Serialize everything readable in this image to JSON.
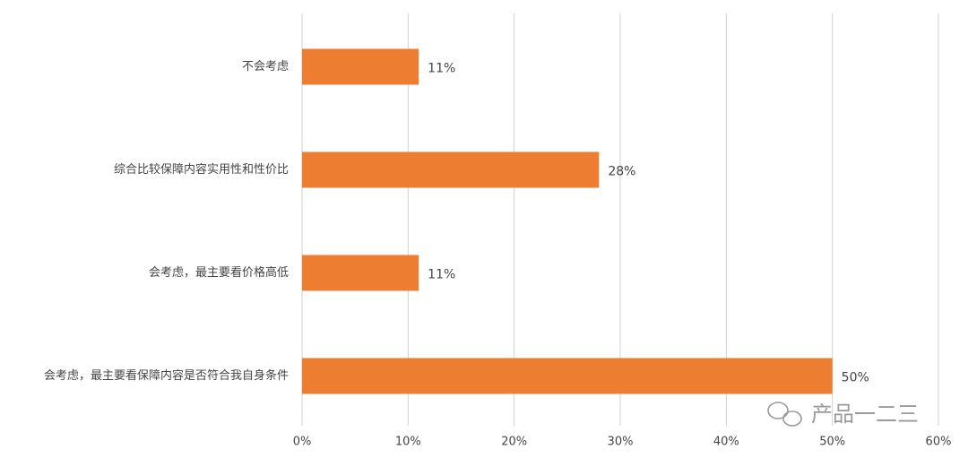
{
  "chart_data": {
    "type": "barh",
    "categories": [
      "不会考虑",
      "综合比较保障内容实用性和性价比",
      "会考虑，最主要看价格高低",
      "会考虑，最主要看保障内容是否符合我自身条件"
    ],
    "values": [
      11,
      28,
      11,
      50
    ],
    "value_labels": [
      "11%",
      "28%",
      "11%",
      "50%"
    ],
    "color": "#ed7d31",
    "xlim": [
      0,
      60
    ],
    "xticks": [
      {
        "value": 0,
        "label": "0%"
      },
      {
        "value": 10,
        "label": "10%"
      },
      {
        "value": 20,
        "label": "20%"
      },
      {
        "value": 30,
        "label": "30%"
      },
      {
        "value": 40,
        "label": "40%"
      },
      {
        "value": 50,
        "label": "50%"
      },
      {
        "value": 60,
        "label": "60%"
      }
    ],
    "grid": true
  },
  "watermark": "产品一二三"
}
